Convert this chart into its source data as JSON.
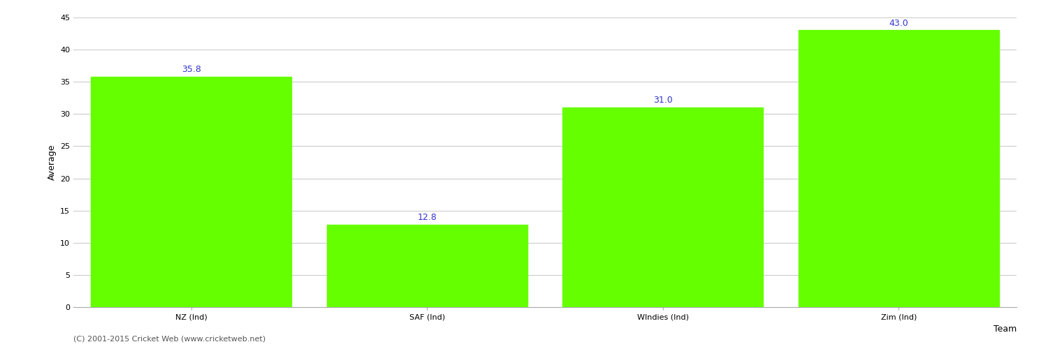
{
  "categories": [
    "NZ (Ind)",
    "SAF (Ind)",
    "WIndies (Ind)",
    "Zim (Ind)"
  ],
  "values": [
    35.8,
    12.8,
    31.0,
    43.0
  ],
  "bar_color": "#66ff00",
  "bar_edgecolor": "#66ff00",
  "xlabel": "Team",
  "ylabel": "Average",
  "ylim": [
    0,
    45
  ],
  "yticks": [
    0,
    5,
    10,
    15,
    20,
    25,
    30,
    35,
    40,
    45
  ],
  "label_color": "#3333cc",
  "label_fontsize": 9,
  "axis_label_fontsize": 9,
  "tick_fontsize": 8,
  "background_color": "#ffffff",
  "grid_color": "#cccccc",
  "footer_text": "(C) 2001-2015 Cricket Web (www.cricketweb.net)",
  "footer_fontsize": 8,
  "footer_color": "#555555"
}
